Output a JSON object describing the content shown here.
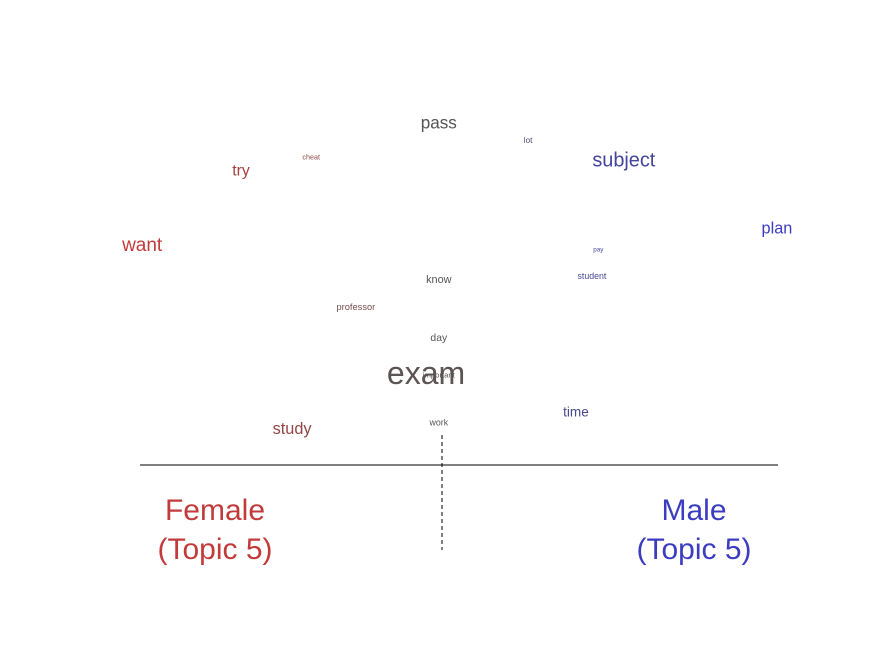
{
  "chart_data": {
    "type": "scatter",
    "axis_labels": {
      "left": [
        "Female",
        "(Topic 5)"
      ],
      "right": [
        "Male",
        "(Topic 5)"
      ]
    },
    "xlim": [
      -1,
      1
    ],
    "ylim": [
      0,
      1
    ],
    "words": [
      {
        "word": "pass",
        "x": -0.01,
        "y": 0.93,
        "weight": 0.45
      },
      {
        "word": "lot",
        "x": 0.27,
        "y": 0.88,
        "weight": 0.12
      },
      {
        "word": "cheat",
        "x": -0.41,
        "y": 0.83,
        "weight": 0.08
      },
      {
        "word": "subject",
        "x": 0.57,
        "y": 0.82,
        "weight": 0.55
      },
      {
        "word": "try",
        "x": -0.63,
        "y": 0.79,
        "weight": 0.4
      },
      {
        "word": "plan",
        "x": 1.05,
        "y": 0.62,
        "weight": 0.42
      },
      {
        "word": "want",
        "x": -0.94,
        "y": 0.57,
        "weight": 0.52
      },
      {
        "word": "pay",
        "x": 0.49,
        "y": 0.56,
        "weight": 0.05
      },
      {
        "word": "student",
        "x": 0.47,
        "y": 0.48,
        "weight": 0.14
      },
      {
        "word": "know",
        "x": -0.01,
        "y": 0.47,
        "weight": 0.22
      },
      {
        "word": "professor",
        "x": -0.27,
        "y": 0.39,
        "weight": 0.16
      },
      {
        "word": "day",
        "x": -0.01,
        "y": 0.3,
        "weight": 0.2
      },
      {
        "word": "exam",
        "x": -0.05,
        "y": 0.19,
        "weight": 1.0
      },
      {
        "word": "important",
        "x": -0.01,
        "y": 0.19,
        "weight": 0.1
      },
      {
        "word": "time",
        "x": 0.42,
        "y": 0.08,
        "weight": 0.32
      },
      {
        "word": "work",
        "x": -0.01,
        "y": 0.05,
        "weight": 0.14
      },
      {
        "word": "study",
        "x": -0.47,
        "y": 0.03,
        "weight": 0.42
      }
    ],
    "colors": {
      "female": "#c23b3b",
      "male": "#3c3cc0",
      "neutral": "#555555",
      "axis": "#000000"
    }
  }
}
